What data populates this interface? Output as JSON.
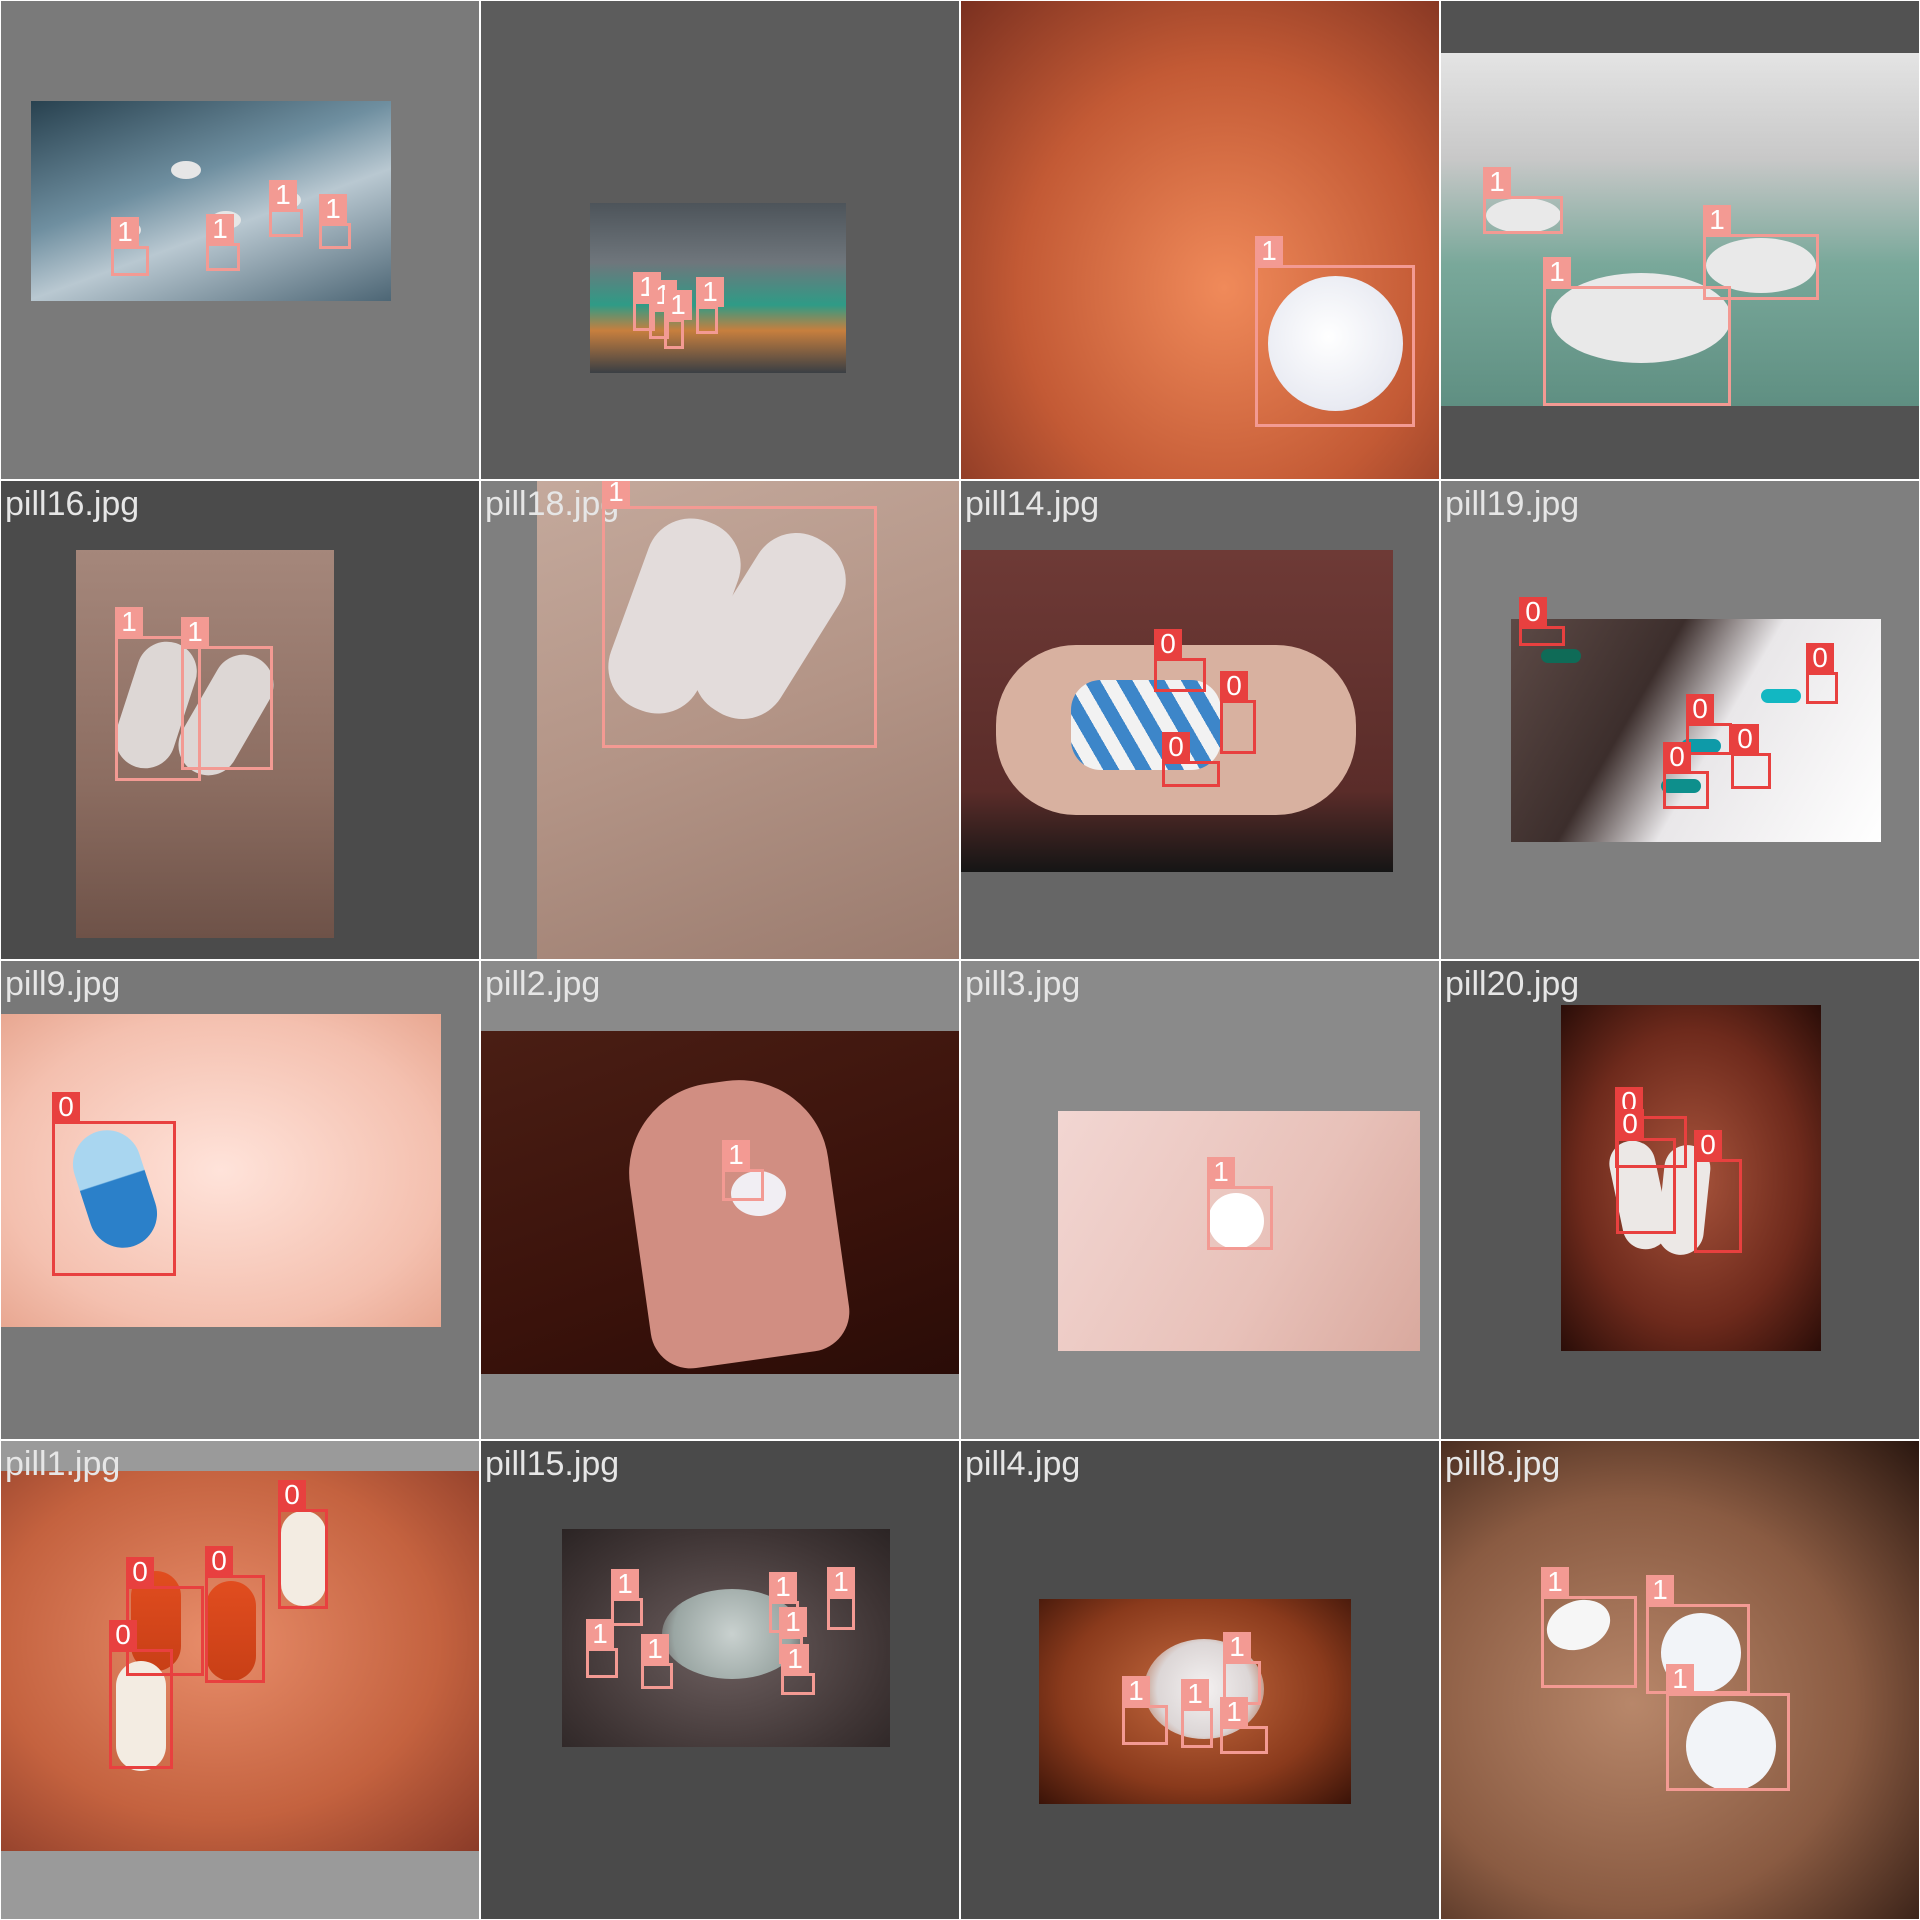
{
  "mosaic": {
    "tiles": [
      {
        "filename": "",
        "boxes": [
          {
            "label": "1"
          },
          {
            "label": "1"
          },
          {
            "label": "1"
          },
          {
            "label": "1"
          }
        ]
      },
      {
        "filename": "",
        "boxes": [
          {
            "label": "1"
          },
          {
            "label": "1"
          },
          {
            "label": "1"
          },
          {
            "label": "1"
          }
        ]
      },
      {
        "filename": "",
        "boxes": [
          {
            "label": "1"
          }
        ]
      },
      {
        "filename": "",
        "boxes": [
          {
            "label": "1"
          },
          {
            "label": "1"
          },
          {
            "label": "1"
          }
        ]
      },
      {
        "filename": "pill16.jpg",
        "boxes": [
          {
            "label": "1"
          },
          {
            "label": "1"
          }
        ]
      },
      {
        "filename": "pill18.jpg",
        "boxes": [
          {
            "label": "1"
          }
        ]
      },
      {
        "filename": "pill14.jpg",
        "boxes": [
          {
            "label": "0"
          },
          {
            "label": "0"
          },
          {
            "label": "0"
          }
        ]
      },
      {
        "filename": "pill19.jpg",
        "boxes": [
          {
            "label": "0"
          },
          {
            "label": "0"
          },
          {
            "label": "0"
          },
          {
            "label": "0"
          },
          {
            "label": "0"
          }
        ]
      },
      {
        "filename": "pill9.jpg",
        "boxes": [
          {
            "label": "0"
          }
        ]
      },
      {
        "filename": "pill2.jpg",
        "boxes": [
          {
            "label": "1"
          }
        ]
      },
      {
        "filename": "pill3.jpg",
        "boxes": [
          {
            "label": "1"
          }
        ]
      },
      {
        "filename": "pill20.jpg",
        "boxes": [
          {
            "label": "0"
          },
          {
            "label": "0"
          },
          {
            "label": "0"
          }
        ]
      },
      {
        "filename": "pill1.jpg",
        "boxes": [
          {
            "label": "0"
          },
          {
            "label": "0"
          },
          {
            "label": "0"
          },
          {
            "label": "0"
          }
        ]
      },
      {
        "filename": "pill15.jpg",
        "boxes": [
          {
            "label": "1"
          },
          {
            "label": "1"
          },
          {
            "label": "1"
          },
          {
            "label": "1"
          },
          {
            "label": "1"
          },
          {
            "label": "1"
          },
          {
            "label": "1"
          }
        ]
      },
      {
        "filename": "pill4.jpg",
        "boxes": [
          {
            "label": "1"
          },
          {
            "label": "1"
          },
          {
            "label": "1"
          },
          {
            "label": "1"
          }
        ]
      },
      {
        "filename": "pill8.jpg",
        "boxes": [
          {
            "label": "1"
          },
          {
            "label": "1"
          },
          {
            "label": "1"
          }
        ]
      }
    ]
  }
}
